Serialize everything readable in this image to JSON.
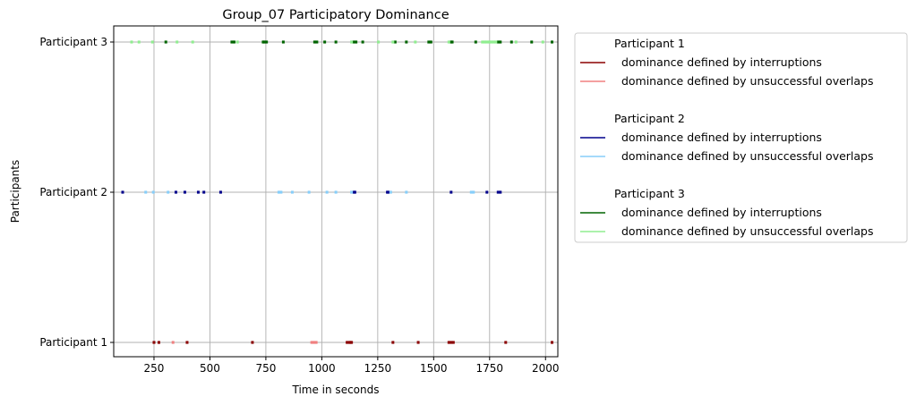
{
  "chart_data": {
    "type": "scatter",
    "title": "Group_07 Participatory Dominance",
    "xlabel": "Time in seconds",
    "ylabel": "Participants",
    "xlim": [
      70,
      2055
    ],
    "x_ticks": [
      250,
      500,
      750,
      1000,
      1250,
      1500,
      1750,
      2000
    ],
    "categories": [
      "Participant 1",
      "Participant 2",
      "Participant 3"
    ],
    "grid": true,
    "legend_position": "outside-right",
    "legend_groups": [
      {
        "title": "Participant 1",
        "entries": [
          {
            "label": "  dominance defined by interruptions",
            "color": "#8b0000"
          },
          {
            "label": "  dominance defined by unsuccessful overlaps",
            "color": "#f08080"
          }
        ]
      },
      {
        "title": "Participant 2",
        "entries": [
          {
            "label": "  dominance defined by interruptions",
            "color": "#00008b"
          },
          {
            "label": "  dominance defined by unsuccessful overlaps",
            "color": "#87cefa"
          }
        ]
      },
      {
        "title": "Participant 3",
        "entries": [
          {
            "label": "  dominance defined by interruptions",
            "color": "#006400"
          },
          {
            "label": "  dominance defined by unsuccessful overlaps",
            "color": "#90ee90"
          }
        ]
      }
    ],
    "series": [
      {
        "participant": "Participant 1",
        "kind": "interruptions",
        "color": "#8b0000",
        "x": [
          250,
          272,
          398,
          690,
          1113,
          1123,
          1128,
          1133,
          1318,
          1431,
          1568,
          1578,
          1588,
          1822,
          2029
        ]
      },
      {
        "participant": "Participant 1",
        "kind": "unsuccessful overlaps",
        "color": "#f08080",
        "x": [
          335,
          955,
          965,
          975
        ]
      },
      {
        "participant": "Participant 2",
        "kind": "interruptions",
        "color": "#00008b",
        "x": [
          110,
          348,
          388,
          448,
          473,
          548,
          1143,
          1148,
          1293,
          1298,
          1578,
          1738,
          1788,
          1798
        ]
      },
      {
        "participant": "Participant 2",
        "kind": "unsuccessful overlaps",
        "color": "#87cefa",
        "x": [
          213,
          247,
          313,
          808,
          818,
          868,
          943,
          1023,
          1063,
          1133,
          1308,
          1378,
          1668,
          1678
        ]
      },
      {
        "participant": "Participant 3",
        "kind": "interruptions",
        "color": "#006400",
        "x": [
          303,
          598,
          608,
          738,
          743,
          753,
          828,
          968,
          978,
          1013,
          1063,
          1143,
          1153,
          1183,
          1328,
          1378,
          1478,
          1488,
          1578,
          1583,
          1688,
          1788,
          1798,
          1848,
          1938,
          2029
        ]
      },
      {
        "participant": "Participant 3",
        "kind": "unsuccessful overlaps",
        "color": "#90ee90",
        "x": [
          150,
          183,
          243,
          353,
          423,
          623,
          1133,
          1253,
          1318,
          1418,
          1568,
          1718,
          1728,
          1738,
          1748,
          1758,
          1768,
          1778,
          1868,
          1988
        ]
      }
    ]
  }
}
